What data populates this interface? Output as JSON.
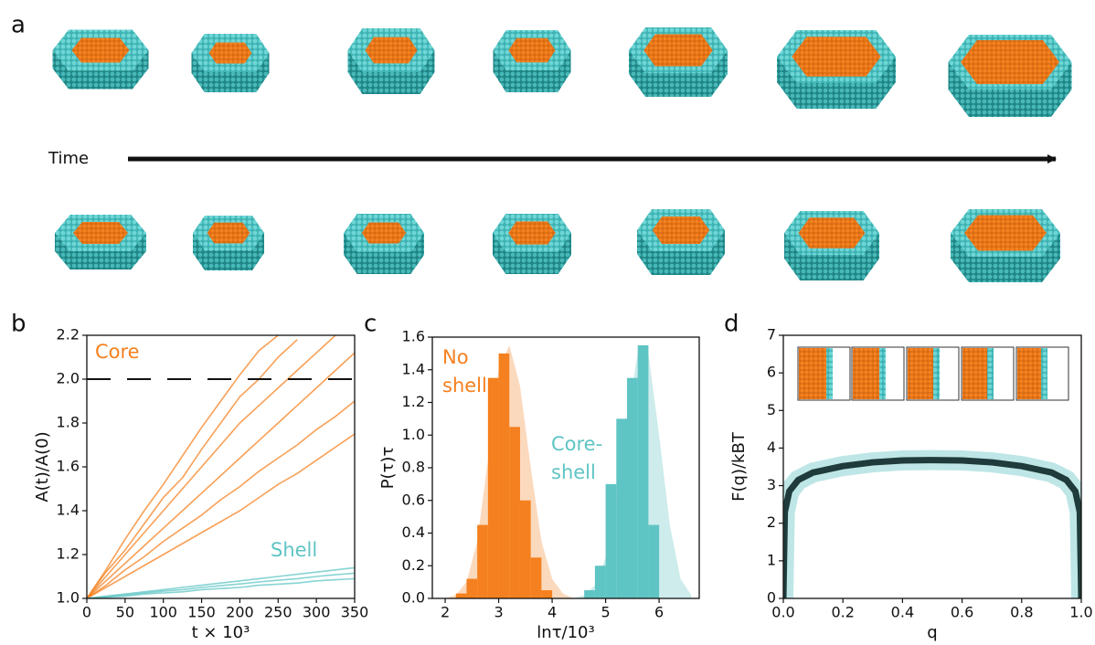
{
  "panels": [
    "a",
    "b",
    "c",
    "d"
  ],
  "time_label": "Time",
  "chart_data": [
    {
      "type": "line",
      "ylabel": "A(t)/A(0)",
      "xlabel": "t × 10³",
      "annotations": [
        "Core",
        "Shell"
      ],
      "hline": 2.0,
      "x": [
        0,
        25,
        50,
        75,
        100,
        125,
        150,
        175,
        200,
        225,
        250,
        275,
        300,
        325,
        350
      ],
      "series": [
        {
          "color": "#f5801f",
          "values": [
            1.0,
            1.13,
            1.27,
            1.4,
            1.52,
            1.65,
            1.78,
            1.9,
            2.02,
            2.13,
            2.2,
            null,
            null,
            null,
            null
          ]
        },
        {
          "color": "#f5801f",
          "values": [
            1.0,
            1.1,
            1.2,
            1.3,
            1.4,
            1.5,
            1.6,
            1.7,
            1.8,
            1.88,
            1.96,
            2.04,
            2.12,
            2.2,
            null
          ]
        },
        {
          "color": "#f5801f",
          "values": [
            1.0,
            1.08,
            1.16,
            1.24,
            1.32,
            1.4,
            1.48,
            1.56,
            1.64,
            1.72,
            1.8,
            1.88,
            1.96,
            2.04,
            2.12
          ]
        },
        {
          "color": "#f5801f",
          "values": [
            1.0,
            1.06,
            1.13,
            1.19,
            1.26,
            1.32,
            1.38,
            1.45,
            1.51,
            1.58,
            1.64,
            1.7,
            1.77,
            1.83,
            1.9
          ]
        },
        {
          "color": "#f5801f",
          "values": [
            1.0,
            1.05,
            1.1,
            1.15,
            1.2,
            1.25,
            1.3,
            1.35,
            1.4,
            1.46,
            1.52,
            1.57,
            1.63,
            1.69,
            1.75
          ]
        },
        {
          "color": "#f5801f",
          "values": [
            1.0,
            1.12,
            1.22,
            1.34,
            1.46,
            1.55,
            1.68,
            1.8,
            1.92,
            2.0,
            2.1,
            2.18,
            null,
            null,
            null
          ]
        },
        {
          "color": "#5fc4c4",
          "values": [
            1.0,
            1.01,
            1.02,
            1.03,
            1.04,
            1.05,
            1.06,
            1.07,
            1.08,
            1.09,
            1.1,
            1.11,
            1.12,
            1.13,
            1.14
          ]
        },
        {
          "color": "#5fc4c4",
          "values": [
            1.0,
            1.005,
            1.01,
            1.02,
            1.025,
            1.03,
            1.04,
            1.045,
            1.05,
            1.06,
            1.065,
            1.07,
            1.08,
            1.085,
            1.09
          ]
        },
        {
          "color": "#5fc4c4",
          "values": [
            1.0,
            1.008,
            1.016,
            1.025,
            1.033,
            1.04,
            1.05,
            1.058,
            1.066,
            1.075,
            1.083,
            1.09,
            1.1,
            1.108,
            1.115
          ]
        }
      ],
      "xlim": [
        0,
        350
      ],
      "xticks": [
        0,
        50,
        100,
        150,
        200,
        250,
        300,
        350
      ],
      "ylim": [
        1.0,
        2.2
      ],
      "yticks": [
        {
          "value": 1.0,
          "label": "1.0"
        },
        1.2,
        1.4,
        1.6,
        1.8,
        {
          "value": 2.0,
          "label": "2.0"
        },
        2.2
      ]
    },
    {
      "type": "histogram",
      "ylabel": "P(τ)τ",
      "xlabel": "lnτ/10³",
      "annotations": [
        [
          "No",
          "shell"
        ],
        [
          "Core-",
          "shell"
        ]
      ],
      "series": [
        {
          "color": "#f5801f",
          "bins": [
            2.2,
            2.4,
            2.6,
            2.8,
            3.0,
            3.2,
            3.4,
            3.6,
            3.8,
            4.0
          ],
          "values": [
            0.03,
            0.12,
            0.45,
            1.35,
            1.5,
            1.05,
            0.6,
            0.25,
            0.05
          ]
        },
        {
          "color": "#5fc4c4",
          "bins": [
            4.6,
            4.8,
            5.0,
            5.2,
            5.4,
            5.6,
            5.8,
            6.0
          ],
          "values": [
            0.05,
            0.2,
            0.7,
            1.1,
            1.35,
            1.55,
            0.45
          ]
        }
      ],
      "fits": [
        {
          "color": "#fbd9bc",
          "x": [
            2.0,
            2.2,
            2.4,
            2.6,
            2.8,
            3.0,
            3.2,
            3.4,
            3.6,
            3.8,
            4.0,
            4.2,
            4.4
          ],
          "values": [
            0,
            0.02,
            0.1,
            0.35,
            0.85,
            1.4,
            1.55,
            1.3,
            0.8,
            0.35,
            0.12,
            0.03,
            0
          ]
        },
        {
          "color": "#cdeceb",
          "x": [
            4.4,
            4.6,
            4.8,
            5.0,
            5.2,
            5.4,
            5.6,
            5.8,
            6.0,
            6.2,
            6.4,
            6.6
          ],
          "values": [
            0,
            0.02,
            0.08,
            0.25,
            0.6,
            1.1,
            1.5,
            1.5,
            1.0,
            0.45,
            0.12,
            0.02
          ]
        }
      ],
      "xlim": [
        1.76,
        6.75
      ],
      "xticks": [
        2,
        3,
        4,
        5,
        6
      ],
      "ylim": [
        0,
        1.6
      ],
      "yticks": [
        {
          "value": 0,
          "label": "0.0"
        },
        0.2,
        0.4,
        0.6,
        0.8,
        {
          "value": 1.0,
          "label": "1.0"
        },
        1.2,
        1.4,
        1.6
      ]
    },
    {
      "type": "line",
      "ylabel": "F(q)/kBT",
      "xlabel": "q",
      "x": [
        0,
        0.005,
        0.02,
        0.05,
        0.1,
        0.2,
        0.3,
        0.4,
        0.5,
        0.6,
        0.7,
        0.8,
        0.9,
        0.95,
        0.98,
        0.995,
        1.0
      ],
      "series": [
        {
          "color": "#1f3b3b",
          "values": [
            0,
            2.3,
            2.85,
            3.15,
            3.35,
            3.52,
            3.62,
            3.67,
            3.68,
            3.67,
            3.62,
            3.52,
            3.35,
            3.15,
            2.85,
            2.3,
            0
          ]
        }
      ],
      "xlim": [
        0,
        1
      ],
      "xticks": [
        {
          "value": 0,
          "label": "0.0"
        },
        0.2,
        0.4,
        0.6,
        0.8,
        {
          "value": 1,
          "label": "1.0"
        }
      ],
      "ylim": [
        0,
        7
      ],
      "yticks": [
        0,
        1,
        2,
        3,
        4,
        5,
        6,
        7
      ]
    }
  ]
}
